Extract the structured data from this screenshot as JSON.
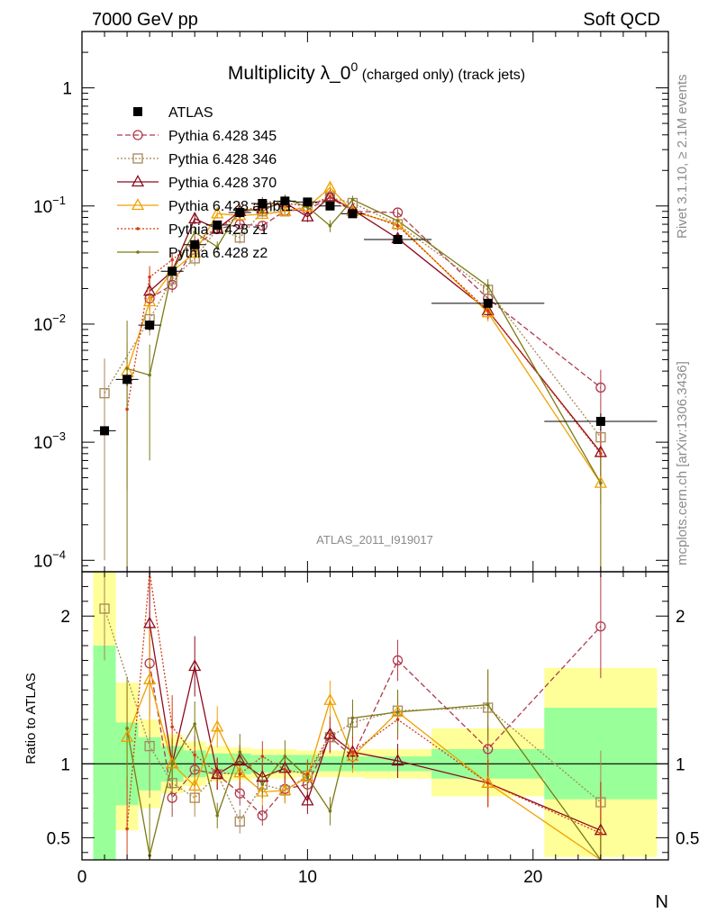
{
  "header": {
    "left": "7000 GeV pp",
    "right": "Soft QCD"
  },
  "side_text": {
    "rivet": "Rivet 3.1.10, ≥ 2.1M events",
    "mcplots": "mcplots.cern.ch [arXiv:1306.3436]"
  },
  "chart_data": {
    "type": "scatter",
    "title_main": "Multiplicity λ_0",
    "title_sup": "0",
    "title_tail": " (charged only) (track jets)",
    "analysis_label": "ATLAS_2011_I919017",
    "xlabel": "N",
    "ylabel_ratio": "Ratio to ATLAS",
    "xlim": [
      0,
      26
    ],
    "ylim_main": [
      8e-05,
      3
    ],
    "ylim_ratio": [
      0.35,
      2.3
    ],
    "yscale_main": "log",
    "main_ticks": [
      {
        "v": 1,
        "base": "1",
        "exp": ""
      },
      {
        "v": 0.1,
        "base": "10",
        "exp": "−1"
      },
      {
        "v": 0.01,
        "base": "10",
        "exp": "−2"
      },
      {
        "v": 0.001,
        "base": "10",
        "exp": "−3"
      },
      {
        "v": 0.0001,
        "base": "10",
        "exp": "−4"
      }
    ],
    "ratio_ticks": [
      {
        "v": 2,
        "label": "2"
      },
      {
        "v": 1,
        "label": "1"
      },
      {
        "v": 0.5,
        "label": "0.5"
      }
    ],
    "x_ticks": [
      {
        "v": 0,
        "label": "0"
      },
      {
        "v": 10,
        "label": "10"
      },
      {
        "v": 20,
        "label": "20"
      }
    ],
    "data": {
      "name": "ATLAS",
      "color": "#000000",
      "points": [
        {
          "x": 1,
          "y": 0.00125,
          "xlo": 0.5,
          "xhi": 1.5,
          "yerr": 0.0001
        },
        {
          "x": 2,
          "y": 0.0034,
          "xlo": 1.5,
          "xhi": 2.5,
          "yerr": 0.0004
        },
        {
          "x": 3,
          "y": 0.0098,
          "xlo": 2.5,
          "xhi": 3.5,
          "yerr": 0.001
        },
        {
          "x": 4,
          "y": 0.028,
          "xlo": 3.5,
          "xhi": 4.5,
          "yerr": 0.0025
        },
        {
          "x": 5,
          "y": 0.047,
          "xlo": 4.5,
          "xhi": 5.5,
          "yerr": 0.004
        },
        {
          "x": 6,
          "y": 0.069,
          "xlo": 5.5,
          "xhi": 6.5,
          "yerr": 0.005
        },
        {
          "x": 7,
          "y": 0.088,
          "xlo": 6.5,
          "xhi": 7.5,
          "yerr": 0.006
        },
        {
          "x": 8,
          "y": 0.105,
          "xlo": 7.5,
          "xhi": 8.5,
          "yerr": 0.007
        },
        {
          "x": 9,
          "y": 0.11,
          "xlo": 8.5,
          "xhi": 9.5,
          "yerr": 0.007
        },
        {
          "x": 10,
          "y": 0.108,
          "xlo": 9.5,
          "xhi": 10.5,
          "yerr": 0.007
        },
        {
          "x": 11,
          "y": 0.1,
          "xlo": 10.5,
          "xhi": 11.5,
          "yerr": 0.006
        },
        {
          "x": 12,
          "y": 0.086,
          "xlo": 11.5,
          "xhi": 12.5,
          "yerr": 0.005
        },
        {
          "x": 14,
          "y": 0.052,
          "xlo": 12.5,
          "xhi": 15.5,
          "yerr": 0.004
        },
        {
          "x": 18,
          "y": 0.015,
          "xlo": 15.5,
          "xhi": 20.5,
          "yerr": 0.0015
        },
        {
          "x": 23,
          "y": 0.0015,
          "xlo": 20.5,
          "xhi": 25.5,
          "yerr": 0.00025
        }
      ],
      "band_inner": [
        {
          "xlo": 0.5,
          "xhi": 1.5,
          "lo": 0.35,
          "hi": 1.8
        },
        {
          "xlo": 1.5,
          "xhi": 2.5,
          "lo": 0.72,
          "hi": 1.28
        },
        {
          "xlo": 2.5,
          "xhi": 3.5,
          "lo": 0.82,
          "hi": 1.18
        },
        {
          "xlo": 3.5,
          "xhi": 4.5,
          "lo": 0.88,
          "hi": 1.12
        },
        {
          "xlo": 4.5,
          "xhi": 5.5,
          "lo": 0.91,
          "hi": 1.09
        },
        {
          "xlo": 5.5,
          "xhi": 6.5,
          "lo": 0.93,
          "hi": 1.07
        },
        {
          "xlo": 6.5,
          "xhi": 7.5,
          "lo": 0.93,
          "hi": 1.07
        },
        {
          "xlo": 7.5,
          "xhi": 8.5,
          "lo": 0.94,
          "hi": 1.06
        },
        {
          "xlo": 8.5,
          "xhi": 9.5,
          "lo": 0.94,
          "hi": 1.06
        },
        {
          "xlo": 9.5,
          "xhi": 10.5,
          "lo": 0.94,
          "hi": 1.06
        },
        {
          "xlo": 10.5,
          "xhi": 11.5,
          "lo": 0.95,
          "hi": 1.05
        },
        {
          "xlo": 11.5,
          "xhi": 12.5,
          "lo": 0.95,
          "hi": 1.05
        },
        {
          "xlo": 12.5,
          "xhi": 15.5,
          "lo": 0.95,
          "hi": 1.05
        },
        {
          "xlo": 15.5,
          "xhi": 20.5,
          "lo": 0.9,
          "hi": 1.1
        },
        {
          "xlo": 20.5,
          "xhi": 25.5,
          "lo": 0.76,
          "hi": 1.38
        }
      ],
      "band_outer": [
        {
          "xlo": 0.5,
          "xhi": 1.5,
          "lo": 0.35,
          "hi": 2.3
        },
        {
          "xlo": 1.5,
          "xhi": 2.5,
          "lo": 0.55,
          "hi": 1.55
        },
        {
          "xlo": 2.5,
          "xhi": 3.5,
          "lo": 0.7,
          "hi": 1.3
        },
        {
          "xlo": 3.5,
          "xhi": 4.5,
          "lo": 0.8,
          "hi": 1.2
        },
        {
          "xlo": 4.5,
          "xhi": 5.5,
          "lo": 0.85,
          "hi": 1.15
        },
        {
          "xlo": 5.5,
          "xhi": 6.5,
          "lo": 0.88,
          "hi": 1.12
        },
        {
          "xlo": 6.5,
          "xhi": 7.5,
          "lo": 0.89,
          "hi": 1.11
        },
        {
          "xlo": 7.5,
          "xhi": 8.5,
          "lo": 0.9,
          "hi": 1.1
        },
        {
          "xlo": 8.5,
          "xhi": 9.5,
          "lo": 0.9,
          "hi": 1.1
        },
        {
          "xlo": 9.5,
          "xhi": 10.5,
          "lo": 0.91,
          "hi": 1.09
        },
        {
          "xlo": 10.5,
          "xhi": 11.5,
          "lo": 0.91,
          "hi": 1.09
        },
        {
          "xlo": 11.5,
          "xhi": 12.5,
          "lo": 0.91,
          "hi": 1.09
        },
        {
          "xlo": 12.5,
          "xhi": 15.5,
          "lo": 0.9,
          "hi": 1.1
        },
        {
          "xlo": 15.5,
          "xhi": 20.5,
          "lo": 0.78,
          "hi": 1.24
        },
        {
          "xlo": 20.5,
          "xhi": 25.5,
          "lo": 0.37,
          "hi": 1.65
        }
      ]
    },
    "series": [
      {
        "name": "Pythia 6.428 345",
        "color": "#b03a4c",
        "marker": "circle",
        "dash": "6,3",
        "x": [
          3,
          4,
          5,
          6,
          7,
          8,
          9,
          10,
          11,
          12,
          14,
          18,
          23
        ],
        "y": [
          0.0165,
          0.0215,
          0.045,
          0.064,
          0.07,
          0.068,
          0.091,
          0.093,
          0.118,
          0.09,
          0.088,
          0.0165,
          0.0029
        ],
        "yerr": [
          0.003,
          0.003,
          0.005,
          0.006,
          0.006,
          0.006,
          0.008,
          0.008,
          0.009,
          0.007,
          0.006,
          0.002,
          0.0012
        ]
      },
      {
        "name": "Pythia 6.428 346",
        "color": "#a6885a",
        "marker": "square",
        "dash": "2,2",
        "x": [
          1,
          3,
          4,
          5,
          6,
          7,
          8,
          9,
          10,
          11,
          12,
          14,
          18,
          23
        ],
        "y": [
          0.0026,
          0.011,
          0.024,
          0.036,
          0.064,
          0.054,
          0.09,
          0.09,
          0.099,
          0.118,
          0.106,
          0.07,
          0.0195,
          0.0011
        ],
        "yerr": [
          0.0025,
          0.003,
          0.004,
          0.005,
          0.006,
          0.006,
          0.008,
          0.008,
          0.009,
          0.009,
          0.008,
          0.006,
          0.003,
          0.0006
        ]
      },
      {
        "name": "Pythia 6.428 370",
        "color": "#8c0a1e",
        "marker": "triangle",
        "dash": "",
        "x": [
          3,
          4,
          5,
          6,
          7,
          8,
          9,
          10,
          11,
          12,
          14,
          18,
          23
        ],
        "y": [
          0.019,
          0.028,
          0.078,
          0.064,
          0.09,
          0.095,
          0.107,
          0.081,
          0.12,
          0.093,
          0.053,
          0.013,
          0.00082
        ],
        "yerr": [
          0.006,
          0.004,
          0.008,
          0.006,
          0.008,
          0.008,
          0.009,
          0.008,
          0.01,
          0.008,
          0.005,
          0.002,
          0.0004
        ]
      },
      {
        "name": "Pythia 6.428 ambt1",
        "color": "#f0a000",
        "marker": "triangle",
        "dash": "",
        "x": [
          2,
          3,
          4,
          5,
          6,
          7,
          8,
          9,
          10,
          11,
          12,
          14,
          18,
          23
        ],
        "y": [
          0.004,
          0.0155,
          0.028,
          0.04,
          0.086,
          0.083,
          0.085,
          0.09,
          0.098,
          0.143,
          0.09,
          0.07,
          0.0125,
          0.00045
        ],
        "yerr": [
          0.003,
          0.004,
          0.004,
          0.005,
          0.008,
          0.008,
          0.008,
          0.008,
          0.009,
          0.011,
          0.008,
          0.006,
          0.002,
          0.0004
        ]
      },
      {
        "name": "Pythia 6.428 z1",
        "color": "#d23c14",
        "marker": "dot",
        "dash": "2,2",
        "x": [
          2,
          3,
          4,
          5,
          6,
          7,
          8,
          9,
          10,
          11,
          12,
          14,
          18,
          23
        ],
        "y": [
          0.0019,
          0.025,
          0.035,
          0.05,
          0.065,
          0.082,
          0.11,
          0.105,
          0.1,
          0.12,
          0.093,
          0.068,
          0.013,
          0.0008
        ],
        "yerr": [
          0.0015,
          0.006,
          0.005,
          0.005,
          0.006,
          0.008,
          0.009,
          0.009,
          0.009,
          0.01,
          0.008,
          0.006,
          0.002,
          0.0005
        ]
      },
      {
        "name": "Pythia 6.428 z2",
        "color": "#7a7a14",
        "marker": "dot",
        "dash": "",
        "x": [
          2,
          3,
          4,
          5,
          6,
          7,
          8,
          9,
          10,
          11,
          12,
          14,
          18,
          23
        ],
        "y": [
          0.0042,
          0.0037,
          0.028,
          0.06,
          0.045,
          0.095,
          0.09,
          0.115,
          0.098,
          0.068,
          0.113,
          0.075,
          0.021,
          0.00045
        ],
        "yerr": [
          0.0065,
          0.003,
          0.004,
          0.006,
          0.005,
          0.009,
          0.008,
          0.01,
          0.009,
          0.008,
          0.009,
          0.007,
          0.003,
          0.0004
        ]
      }
    ],
    "ratios": [
      {
        "x": [
          3,
          4,
          5,
          6,
          7,
          8,
          9,
          10,
          11,
          12,
          14,
          18,
          23
        ],
        "y": [
          1.68,
          0.77,
          0.96,
          0.93,
          0.8,
          0.65,
          0.83,
          0.86,
          1.18,
          1.05,
          1.7,
          1.1,
          1.93
        ]
      },
      {
        "x": [
          1,
          3,
          4,
          5,
          6,
          7,
          8,
          9,
          10,
          11,
          12,
          14,
          18,
          23
        ],
        "y": [
          2.05,
          1.12,
          0.87,
          0.77,
          0.93,
          0.61,
          0.86,
          0.82,
          0.92,
          1.18,
          1.28,
          1.36,
          1.38,
          0.74
        ]
      },
      {
        "x": [
          3,
          4,
          5,
          6,
          7,
          8,
          9,
          10,
          11,
          12,
          14,
          18,
          23
        ],
        "y": [
          1.95,
          1.0,
          1.66,
          0.93,
          1.02,
          0.91,
          0.97,
          0.75,
          1.2,
          1.08,
          1.02,
          0.87,
          0.55
        ]
      },
      {
        "x": [
          2,
          3,
          4,
          5,
          6,
          7,
          8,
          9,
          10,
          11,
          12,
          14,
          18,
          23
        ],
        "y": [
          1.18,
          1.57,
          1.0,
          0.85,
          1.25,
          0.94,
          0.81,
          0.82,
          0.91,
          1.43,
          1.05,
          1.35,
          0.87,
          0.3
        ]
      },
      {
        "x": [
          2,
          3,
          4,
          5,
          6,
          7,
          8,
          9,
          10,
          11,
          12,
          14,
          18,
          23
        ],
        "y": [
          0.56,
          2.55,
          1.25,
          1.06,
          0.94,
          0.93,
          1.05,
          0.96,
          0.93,
          1.2,
          1.08,
          1.3,
          0.87,
          0.53
        ]
      },
      {
        "x": [
          2,
          3,
          4,
          5,
          6,
          7,
          8,
          9,
          10,
          11,
          12,
          14,
          18,
          23
        ],
        "y": [
          1.24,
          0.38,
          1.0,
          1.27,
          0.65,
          1.08,
          0.86,
          1.05,
          0.91,
          0.68,
          1.31,
          1.35,
          1.4,
          0.3
        ]
      }
    ]
  }
}
